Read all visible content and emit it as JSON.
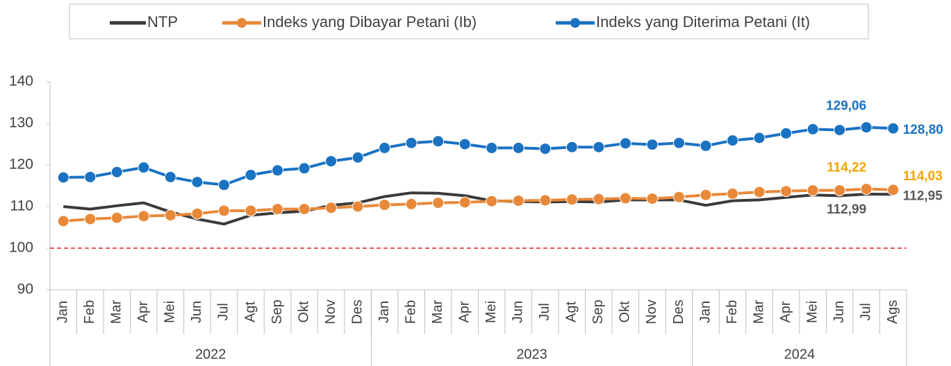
{
  "chart_data": {
    "type": "line",
    "categories": [
      "Jan",
      "Feb",
      "Mar",
      "Apr",
      "Mei",
      "Jun",
      "Jul",
      "Agt",
      "Sep",
      "Okt",
      "Nov",
      "Des",
      "Jan",
      "Feb",
      "Mar",
      "Apr",
      "Mei",
      "Jun",
      "Jul",
      "Agt",
      "Sep",
      "Okt",
      "Nov",
      "Des",
      "Jan",
      "Feb",
      "Mar",
      "Apr",
      "Mei",
      "Jun",
      "Jul",
      "Ags"
    ],
    "year_groups": [
      {
        "label": "2022",
        "span": 12
      },
      {
        "label": "2023",
        "span": 12
      },
      {
        "label": "2024",
        "span": 8
      }
    ],
    "series": [
      {
        "name": "NTP",
        "color": "#3a3a3a",
        "label_color": "#595959",
        "marker": false,
        "values": [
          110,
          109.4,
          110.2,
          110.9,
          108.7,
          107,
          105.8,
          107.9,
          108.5,
          108.9,
          110.3,
          110.9,
          112.4,
          113.3,
          113.2,
          112.6,
          111.4,
          111.2,
          111.1,
          111.2,
          111.1,
          111.6,
          111.6,
          111.6,
          110.3,
          111.4,
          111.6,
          112.2,
          112.8,
          112.6,
          112.99,
          112.95
        ],
        "value_labels": [
          null,
          null,
          null,
          null,
          null,
          null,
          null,
          null,
          null,
          null,
          null,
          null,
          null,
          null,
          null,
          null,
          null,
          null,
          null,
          null,
          null,
          null,
          null,
          null,
          null,
          null,
          null,
          null,
          null,
          null,
          "112,99",
          "112,95"
        ]
      },
      {
        "name": "Indeks yang Dibayar Petani (Ib)",
        "color": "#e8893a",
        "label_color": "#f0a500",
        "marker": true,
        "values": [
          106.5,
          107,
          107.3,
          107.7,
          107.9,
          108.3,
          109,
          109,
          109.4,
          109.4,
          109.7,
          110,
          110.4,
          110.6,
          110.9,
          111,
          111.3,
          111.4,
          111.5,
          111.7,
          111.8,
          112,
          111.9,
          112.3,
          112.8,
          113.1,
          113.5,
          113.7,
          113.9,
          113.9,
          114.22,
          114.03
        ],
        "value_labels": [
          null,
          null,
          null,
          null,
          null,
          null,
          null,
          null,
          null,
          null,
          null,
          null,
          null,
          null,
          null,
          null,
          null,
          null,
          null,
          null,
          null,
          null,
          null,
          null,
          null,
          null,
          null,
          null,
          null,
          null,
          "114,22",
          "114,03"
        ]
      },
      {
        "name": "Indeks yang Diterima Petani (It)",
        "color": "#1a72c2",
        "label_color": "#1a72c2",
        "marker": true,
        "values": [
          117,
          117.1,
          118.3,
          119.4,
          117.1,
          115.9,
          115.2,
          117.6,
          118.7,
          119.2,
          120.9,
          121.8,
          124.1,
          125.3,
          125.7,
          125,
          124.1,
          124.1,
          123.9,
          124.3,
          124.3,
          125.2,
          124.9,
          125.3,
          124.6,
          125.9,
          126.5,
          127.6,
          128.6,
          128.4,
          129.06,
          128.8
        ],
        "value_labels": [
          null,
          null,
          null,
          null,
          null,
          null,
          null,
          null,
          null,
          null,
          null,
          null,
          null,
          null,
          null,
          null,
          null,
          null,
          null,
          null,
          null,
          null,
          null,
          null,
          null,
          null,
          null,
          null,
          null,
          null,
          "129,06",
          "128,80"
        ]
      }
    ],
    "ylim": [
      90,
      140
    ],
    "yticks": [
      90,
      100,
      110,
      120,
      130,
      140
    ],
    "reference_line": {
      "value": 100,
      "color": "#e02020"
    },
    "legend": "top"
  }
}
